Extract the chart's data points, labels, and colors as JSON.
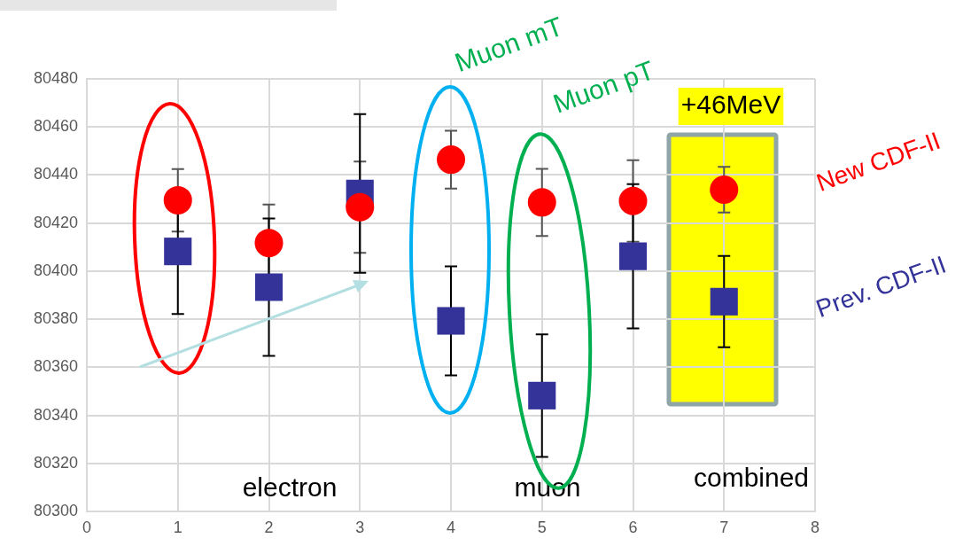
{
  "chart_data": {
    "type": "scatter",
    "x": [
      1,
      2,
      3,
      4,
      5,
      6,
      7
    ],
    "series": [
      {
        "name": "New CDF-II",
        "color": "#ff0000",
        "marker": "circle",
        "values": [
          80429.5,
          80411.7,
          80426.6,
          80446.4,
          80428.6,
          80429.2,
          80433.9
        ],
        "errors": [
          13,
          16,
          19,
          12,
          14,
          17,
          9.5
        ]
      },
      {
        "name": "Prev. CDF-II",
        "color": "#333399",
        "marker": "square",
        "values": [
          80408.2,
          80393.3,
          80432.3,
          80379.3,
          80348.2,
          80406.2,
          80387.3
        ],
        "errors": [
          26,
          28.6,
          33,
          22.7,
          25.5,
          30,
          19
        ]
      }
    ],
    "xlim": [
      0,
      8
    ],
    "xticks": [
      0,
      1,
      2,
      3,
      4,
      5,
      6,
      7,
      8
    ],
    "ylim": [
      80300,
      80480
    ],
    "yticks": [
      80300,
      80320,
      80340,
      80360,
      80380,
      80400,
      80420,
      80440,
      80460,
      80480
    ],
    "grid": true,
    "legend": false,
    "annotations": [
      "Muon mT",
      "Muon pT",
      "+46MeV",
      "electron",
      "muon",
      "combined"
    ]
  }
}
